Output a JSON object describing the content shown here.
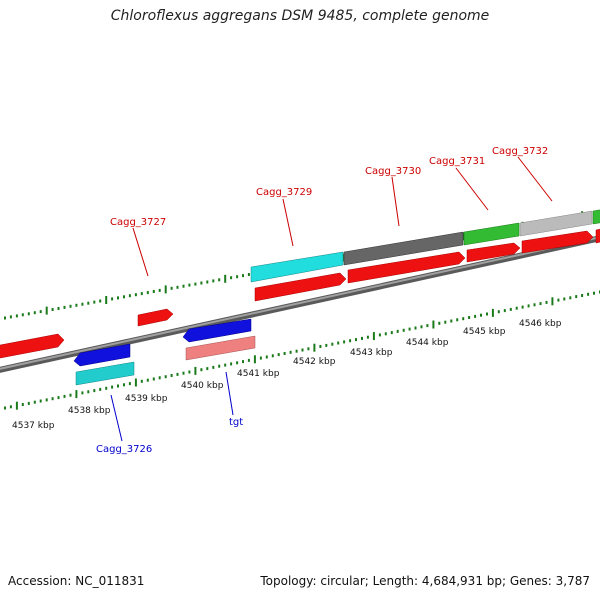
{
  "title": "Chloroflexus aggregans DSM 9485, complete genome",
  "footer": {
    "accession": "Accession: NC_011831",
    "summary": "Topology: circular; Length: 4,684,931 bp; Genes: 3,787"
  },
  "ticks": [
    {
      "label": "4537 kbp"
    },
    {
      "label": "4538 kbp"
    },
    {
      "label": "4539 kbp"
    },
    {
      "label": "4540 kbp"
    },
    {
      "label": "4541 kbp"
    },
    {
      "label": "4542 kbp"
    },
    {
      "label": "4543 kbp"
    },
    {
      "label": "4544 kbp"
    },
    {
      "label": "4545 kbp"
    },
    {
      "label": "4546 kbp"
    }
  ],
  "gene_labels": {
    "cagg_3727": "Cagg_3727",
    "cagg_3729": "Cagg_3729",
    "cagg_3730": "Cagg_3730",
    "cagg_3731": "Cagg_3731",
    "cagg_3732": "Cagg_3732",
    "cagg_3726": "Cagg_3726",
    "tgt": "tgt"
  },
  "colors": {
    "forward_label": "#cc0000",
    "reverse_label": "#0000cc",
    "tick": "#1a7a1a",
    "backbone": "#808080",
    "cds_red": "#ee1111",
    "cds_blue": "#1111dd",
    "cds_cyan": "#22cccc",
    "cds_pink": "#ee8080",
    "cds_darkgray": "#666666",
    "cds_green": "#33bb33",
    "cds_lightgray": "#bbbbbb"
  }
}
